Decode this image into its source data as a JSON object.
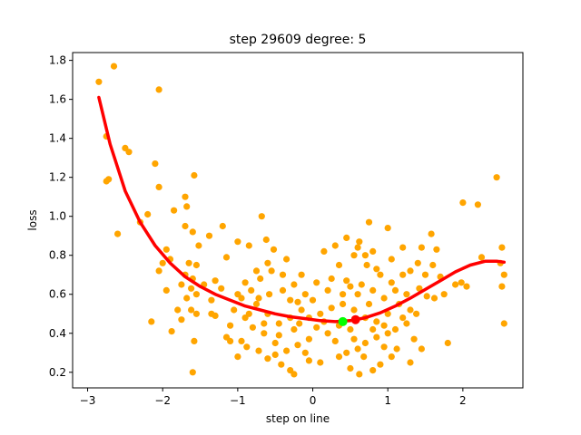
{
  "chart_data": {
    "type": "scatter",
    "title": "step 29609   degree: 5",
    "xlabel": "step on line",
    "ylabel": "loss",
    "xlim": [
      -3.2,
      2.8
    ],
    "ylim": [
      0.12,
      1.84
    ],
    "xticks": [
      -3,
      -2,
      -1,
      0,
      1,
      2
    ],
    "xtick_labels": [
      "−3",
      "−2",
      "−1",
      "0",
      "1",
      "2"
    ],
    "yticks": [
      0.2,
      0.4,
      0.6,
      0.8,
      1.0,
      1.2,
      1.4,
      1.6,
      1.8
    ],
    "ytick_labels": [
      "0.2",
      "0.4",
      "0.6",
      "0.8",
      "1.0",
      "1.2",
      "1.4",
      "1.6",
      "1.8"
    ],
    "grid": false,
    "colors": {
      "points": "#ffa500",
      "fit": "#ff0000",
      "green_marker": "#00ff00",
      "red_marker": "#ff0000"
    },
    "fit_curve": {
      "x": [
        -2.85,
        -2.7,
        -2.5,
        -2.3,
        -2.1,
        -1.9,
        -1.7,
        -1.5,
        -1.3,
        -1.1,
        -0.9,
        -0.7,
        -0.5,
        -0.3,
        -0.1,
        0.1,
        0.3,
        0.5,
        0.7,
        0.9,
        1.1,
        1.3,
        1.5,
        1.7,
        1.9,
        2.1,
        2.3,
        2.45,
        2.55
      ],
      "y": [
        1.61,
        1.37,
        1.13,
        0.97,
        0.85,
        0.76,
        0.69,
        0.64,
        0.6,
        0.57,
        0.54,
        0.52,
        0.5,
        0.485,
        0.475,
        0.465,
        0.46,
        0.465,
        0.48,
        0.505,
        0.54,
        0.58,
        0.625,
        0.67,
        0.715,
        0.75,
        0.77,
        0.77,
        0.765
      ]
    },
    "green_marker": {
      "x": 0.4,
      "y": 0.46
    },
    "red_marker": {
      "x": 0.57,
      "y": 0.47
    },
    "points": [
      [
        -2.85,
        1.69
      ],
      [
        -2.65,
        1.77
      ],
      [
        -2.05,
        1.65
      ],
      [
        -2.5,
        1.35
      ],
      [
        -2.45,
        1.33
      ],
      [
        -2.75,
        1.41
      ],
      [
        -2.1,
        1.27
      ],
      [
        -2.75,
        1.18
      ],
      [
        -2.72,
        1.19
      ],
      [
        -2.05,
        1.15
      ],
      [
        -1.7,
        1.1
      ],
      [
        -1.68,
        1.05
      ],
      [
        -1.58,
        1.21
      ],
      [
        -1.85,
        1.03
      ],
      [
        -2.2,
        1.01
      ],
      [
        -2.3,
        0.97
      ],
      [
        -2.6,
        0.91
      ],
      [
        -1.7,
        0.95
      ],
      [
        -1.6,
        0.92
      ],
      [
        -1.52,
        0.85
      ],
      [
        -1.38,
        0.9
      ],
      [
        -1.2,
        0.95
      ],
      [
        -1.0,
        0.87
      ],
      [
        -0.68,
        1.0
      ],
      [
        -0.85,
        0.85
      ],
      [
        -0.62,
        0.88
      ],
      [
        -0.52,
        0.83
      ],
      [
        -1.15,
        0.79
      ],
      [
        -1.95,
        0.83
      ],
      [
        -1.9,
        0.78
      ],
      [
        -2.0,
        0.76
      ],
      [
        -2.05,
        0.72
      ],
      [
        -1.65,
        0.76
      ],
      [
        -1.55,
        0.75
      ],
      [
        -1.7,
        0.7
      ],
      [
        -1.6,
        0.68
      ],
      [
        -1.45,
        0.65
      ],
      [
        -1.3,
        0.67
      ],
      [
        -1.75,
        0.65
      ],
      [
        -1.62,
        0.63
      ],
      [
        -1.55,
        0.6
      ],
      [
        -1.95,
        0.62
      ],
      [
        -1.68,
        0.58
      ],
      [
        -1.35,
        0.57
      ],
      [
        -1.22,
        0.63
      ],
      [
        -1.8,
        0.52
      ],
      [
        -1.62,
        0.52
      ],
      [
        -1.55,
        0.5
      ],
      [
        -1.35,
        0.5
      ],
      [
        -1.3,
        0.49
      ],
      [
        -1.75,
        0.47
      ],
      [
        -2.15,
        0.46
      ],
      [
        -1.88,
        0.41
      ],
      [
        -1.58,
        0.36
      ],
      [
        -1.6,
        0.2
      ],
      [
        -1.15,
        0.38
      ],
      [
        -1.1,
        0.36
      ],
      [
        -1.0,
        0.28
      ],
      [
        -0.88,
        0.33
      ],
      [
        -0.72,
        0.31
      ],
      [
        -0.5,
        0.29
      ],
      [
        -0.42,
        0.24
      ],
      [
        -0.3,
        0.21
      ],
      [
        -0.25,
        0.19
      ],
      [
        -0.05,
        0.26
      ],
      [
        0.1,
        0.25
      ],
      [
        0.35,
        0.28
      ],
      [
        0.5,
        0.22
      ],
      [
        0.62,
        0.19
      ],
      [
        0.8,
        0.21
      ],
      [
        0.9,
        0.24
      ],
      [
        1.05,
        0.28
      ],
      [
        1.3,
        0.25
      ],
      [
        1.35,
        0.37
      ],
      [
        1.45,
        0.32
      ],
      [
        1.8,
        0.35
      ],
      [
        2.55,
        0.45
      ],
      [
        2.52,
        0.64
      ],
      [
        2.55,
        0.7
      ],
      [
        2.5,
        0.76
      ],
      [
        2.52,
        0.84
      ],
      [
        2.45,
        1.2
      ],
      [
        2.2,
        1.06
      ],
      [
        2.0,
        1.07
      ],
      [
        2.25,
        0.79
      ],
      [
        2.05,
        0.64
      ],
      [
        1.98,
        0.66
      ],
      [
        1.9,
        0.65
      ],
      [
        1.75,
        0.6
      ],
      [
        1.6,
        0.75
      ],
      [
        1.65,
        0.83
      ],
      [
        1.58,
        0.91
      ],
      [
        1.45,
        0.84
      ],
      [
        1.4,
        0.76
      ],
      [
        1.3,
        0.72
      ],
      [
        1.2,
        0.84
      ],
      [
        1.0,
        0.94
      ],
      [
        0.75,
        0.97
      ],
      [
        0.62,
        0.87
      ],
      [
        0.6,
        0.84
      ],
      [
        0.45,
        0.89
      ],
      [
        0.3,
        0.85
      ],
      [
        0.15,
        0.82
      ],
      [
        0.8,
        0.82
      ],
      [
        0.7,
        0.8
      ],
      [
        0.55,
        0.8
      ],
      [
        1.05,
        0.78
      ],
      [
        0.85,
        0.73
      ],
      [
        0.9,
        0.7
      ],
      [
        0.72,
        0.75
      ],
      [
        0.35,
        0.75
      ],
      [
        0.25,
        0.68
      ],
      [
        0.5,
        0.64
      ],
      [
        0.6,
        0.6
      ],
      [
        0.75,
        0.55
      ],
      [
        0.95,
        0.58
      ],
      [
        1.1,
        0.62
      ],
      [
        1.25,
        0.6
      ],
      [
        1.42,
        0.63
      ],
      [
        1.52,
        0.59
      ],
      [
        1.38,
        0.5
      ],
      [
        1.25,
        0.45
      ],
      [
        1.1,
        0.42
      ],
      [
        1.0,
        0.4
      ],
      [
        0.85,
        0.38
      ],
      [
        0.7,
        0.35
      ],
      [
        0.6,
        0.32
      ],
      [
        0.45,
        0.3
      ],
      [
        0.3,
        0.36
      ],
      [
        0.2,
        0.4
      ],
      [
        0.05,
        0.43
      ],
      [
        -0.05,
        0.37
      ],
      [
        -0.2,
        0.34
      ],
      [
        -0.35,
        0.31
      ],
      [
        -0.5,
        0.35
      ],
      [
        -0.65,
        0.4
      ],
      [
        -0.8,
        0.43
      ],
      [
        -0.9,
        0.48
      ],
      [
        -1.05,
        0.52
      ],
      [
        -0.95,
        0.58
      ],
      [
        -0.82,
        0.62
      ],
      [
        -0.7,
        0.68
      ],
      [
        -0.55,
        0.72
      ],
      [
        -0.4,
        0.7
      ],
      [
        -0.25,
        0.65
      ],
      [
        -0.1,
        0.6
      ],
      [
        0.0,
        0.57
      ],
      [
        -0.15,
        0.52
      ],
      [
        -0.3,
        0.48
      ],
      [
        -0.45,
        0.45
      ],
      [
        -0.6,
        0.5
      ],
      [
        -0.75,
        0.55
      ],
      [
        -0.58,
        0.6
      ],
      [
        -0.4,
        0.62
      ],
      [
        -0.2,
        0.56
      ],
      [
        0.1,
        0.5
      ],
      [
        0.25,
        0.53
      ],
      [
        0.4,
        0.55
      ],
      [
        0.55,
        0.52
      ],
      [
        0.7,
        0.48
      ],
      [
        0.85,
        0.46
      ],
      [
        1.0,
        0.5
      ],
      [
        1.15,
        0.55
      ],
      [
        1.3,
        0.52
      ],
      [
        1.2,
        0.48
      ],
      [
        0.95,
        0.44
      ],
      [
        0.8,
        0.42
      ],
      [
        0.5,
        0.42
      ],
      [
        0.35,
        0.44
      ],
      [
        0.15,
        0.46
      ],
      [
        -0.05,
        0.48
      ],
      [
        -0.25,
        0.42
      ],
      [
        -0.45,
        0.39
      ],
      [
        -0.65,
        0.45
      ],
      [
        -0.85,
        0.5
      ],
      [
        -1.0,
        0.6
      ],
      [
        -0.9,
        0.66
      ],
      [
        -0.75,
        0.72
      ],
      [
        -0.6,
        0.76
      ],
      [
        -0.35,
        0.78
      ],
      [
        -0.15,
        0.7
      ],
      [
        0.05,
        0.66
      ],
      [
        0.2,
        0.62
      ],
      [
        0.4,
        0.6
      ],
      [
        0.65,
        0.65
      ],
      [
        0.8,
        0.62
      ],
      [
        1.05,
        0.66
      ],
      [
        1.2,
        0.7
      ],
      [
        1.5,
        0.7
      ],
      [
        1.12,
        0.32
      ],
      [
        0.55,
        0.37
      ],
      [
        -0.1,
        0.3
      ],
      [
        -0.6,
        0.27
      ],
      [
        -0.95,
        0.36
      ],
      [
        -0.3,
        0.57
      ],
      [
        0.45,
        0.67
      ],
      [
        1.7,
        0.69
      ],
      [
        1.62,
        0.58
      ],
      [
        -0.72,
        0.58
      ],
      [
        -0.18,
        0.45
      ],
      [
        0.68,
        0.28
      ],
      [
        0.95,
        0.33
      ],
      [
        -1.1,
        0.44
      ]
    ]
  }
}
